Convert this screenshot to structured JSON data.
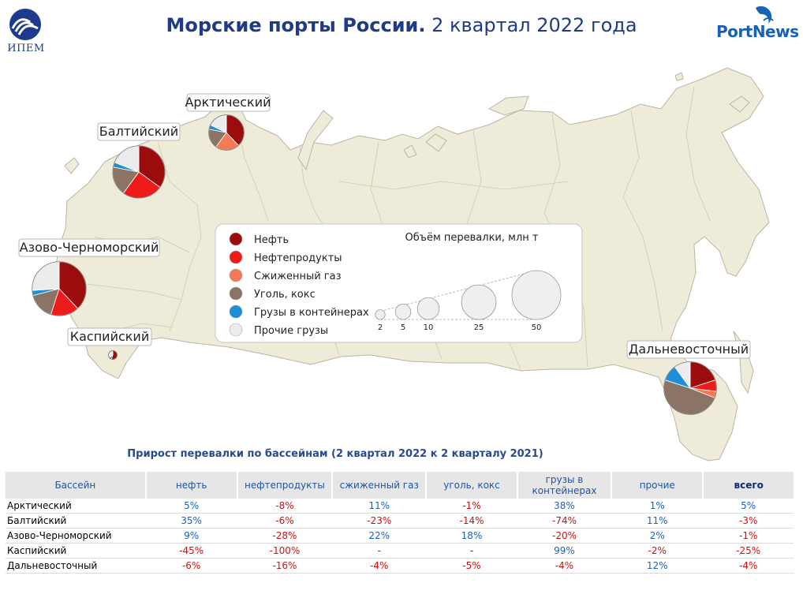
{
  "header": {
    "title_bold": "Морские порты России.",
    "title_rest": "2 квартал 2022 года",
    "logo_left_text": "ИПЕМ",
    "logo_right_text": "PortNews"
  },
  "chart_data": [
    {
      "type": "pie",
      "title": "",
      "description_note": "Bubble-pie map: pie size ∝ cargo volume",
      "legend": {
        "entries": [
          "Нефть",
          "Нефтепродукты",
          "Сжиженный газ",
          "Уголь, кокс",
          "Грузы в контейнерах",
          "Прочие грузы"
        ],
        "colors": [
          "#9b0d0d",
          "#ee1b1b",
          "#f47a55",
          "#8b7365",
          "#1e8fd6",
          "#ececec"
        ],
        "size_title": "Объём перевалки, млн т",
        "size_values": [
          2,
          5,
          10,
          25,
          50
        ]
      },
      "basins": [
        {
          "name": "Арктический",
          "volume": 26,
          "shares": [
            38,
            0,
            22,
            18,
            4,
            18
          ]
        },
        {
          "name": "Балтийский",
          "volume": 57,
          "shares": [
            35,
            25,
            0,
            18,
            3,
            19
          ]
        },
        {
          "name": "Азово-Черноморский",
          "volume": 61,
          "shares": [
            38,
            17,
            0,
            16,
            3,
            26
          ]
        },
        {
          "name": "Каспийский",
          "volume": 1.6,
          "shares": [
            55,
            0,
            0,
            0,
            10,
            35
          ]
        },
        {
          "name": "Дальневосточный",
          "volume": 58,
          "shares": [
            20,
            7,
            4,
            49,
            10,
            10
          ]
        }
      ]
    },
    {
      "type": "table",
      "title": "Прирост перевалки по бассейнам (2 квартал 2022 к 2 кварталу 2021)",
      "columns": [
        "Бассейн",
        "нефть",
        "нефтепродукты",
        "сжиженный газ",
        "уголь, кокс",
        "грузы в контейнерах",
        "прочие",
        "всего"
      ],
      "rows": [
        [
          "Арктический",
          "5%",
          "-8%",
          "11%",
          "-1%",
          "38%",
          "1%",
          "5%"
        ],
        [
          "Балтийский",
          "35%",
          "-6%",
          "-23%",
          "-14%",
          "-74%",
          "11%",
          "-3%"
        ],
        [
          "Азово-Черноморский",
          "9%",
          "-28%",
          "22%",
          "18%",
          "-20%",
          "2%",
          "-1%"
        ],
        [
          "Каспийский",
          "-45%",
          "-100%",
          "-",
          "-",
          "99%",
          "-2%",
          "-25%"
        ],
        [
          "Дальневосточный",
          "-6%",
          "-16%",
          "-4%",
          "-5%",
          "-4%",
          "12%",
          "-4%"
        ]
      ]
    }
  ]
}
